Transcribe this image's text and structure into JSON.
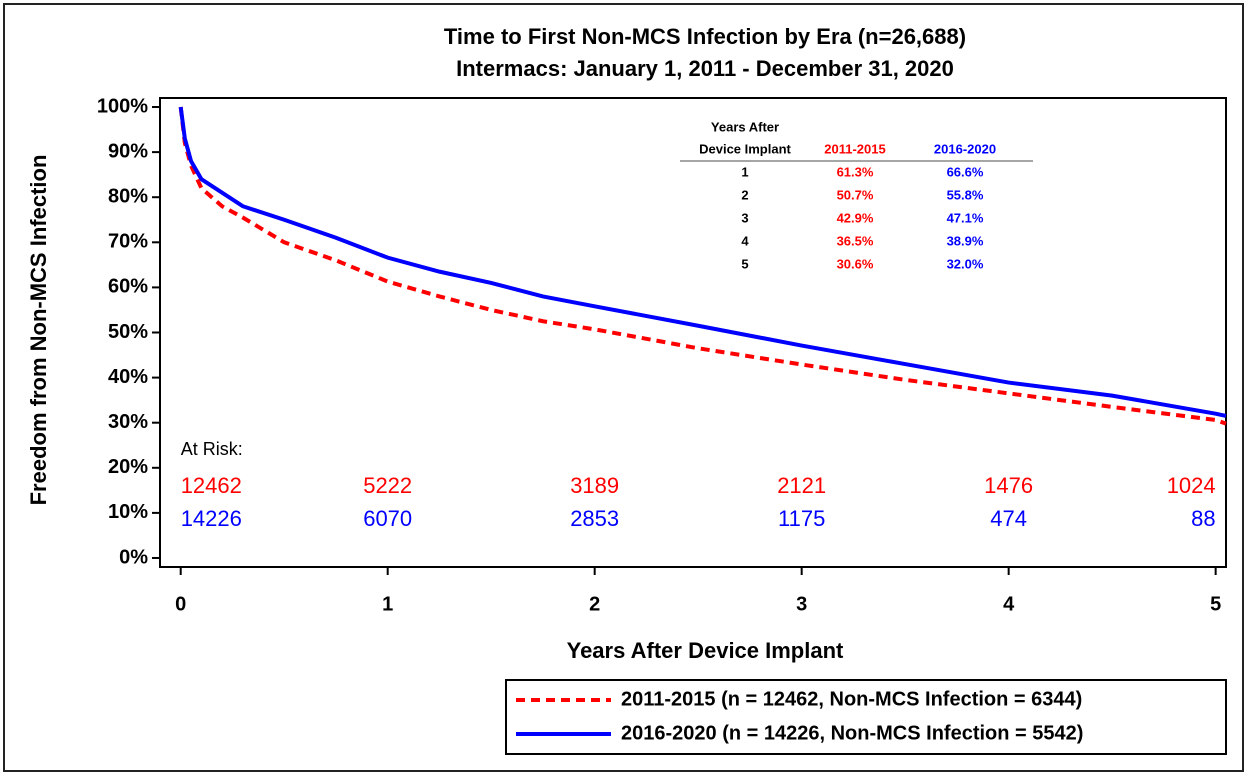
{
  "chart_data": {
    "type": "line",
    "title": "Time to First Non-MCS Infection by Era (n=26,688)",
    "subtitle": "Intermacs: January 1, 2011 - December 31, 2020",
    "x_label": "Years After Device Implant",
    "y_label": "Freedom from Non-MCS Infection",
    "x": [
      0,
      0.02,
      0.05,
      0.1,
      0.2,
      0.3,
      0.5,
      0.75,
      1,
      1.25,
      1.5,
      1.75,
      2,
      2.5,
      3,
      3.5,
      4,
      4.5,
      5,
      5.05
    ],
    "series": [
      {
        "name": "2011-2015 (n = 12462, Non-MCS Infection = 6344)",
        "color": "#ff0000",
        "dash": true,
        "values": [
          100,
          92,
          87,
          82,
          78,
          75.5,
          70,
          66,
          61.3,
          58,
          55,
          52.5,
          50.7,
          46.5,
          42.9,
          39.5,
          36.5,
          33.5,
          30.6,
          29.8
        ]
      },
      {
        "name": "2016-2020 (n = 14226, Non-MCS Infection = 5542)",
        "color": "#0000ff",
        "dash": false,
        "values": [
          100,
          93,
          88,
          84,
          81,
          78,
          75,
          71,
          66.6,
          63.5,
          61,
          58,
          55.8,
          51.5,
          47.1,
          43,
          38.9,
          36,
          32.0,
          31.5
        ]
      }
    ],
    "xlim": [
      -0.1,
      5.05
    ],
    "ylim": [
      -2,
      102
    ],
    "xticks": [
      0,
      1,
      2,
      3,
      4,
      5
    ],
    "yticks": [
      {
        "value": 0,
        "label": "0%"
      },
      {
        "value": 10,
        "label": "10%"
      },
      {
        "value": 20,
        "label": "20%"
      },
      {
        "value": 30,
        "label": "30%"
      },
      {
        "value": 40,
        "label": "40%"
      },
      {
        "value": 50,
        "label": "50%"
      },
      {
        "value": 60,
        "label": "60%"
      },
      {
        "value": 70,
        "label": "70%"
      },
      {
        "value": 80,
        "label": "80%"
      },
      {
        "value": 90,
        "label": "90%"
      },
      {
        "value": 100,
        "label": "100%"
      }
    ],
    "legend": "bottom-right",
    "at_risk": {
      "label": "At Risk:",
      "rows": [
        [
          12462,
          5222,
          3189,
          2121,
          1476,
          1024
        ],
        [
          14226,
          6070,
          2853,
          1175,
          474,
          88
        ]
      ]
    },
    "inset_table": {
      "header_lines": [
        "Years After",
        "Device Implant"
      ],
      "columns": [
        "2011-2015",
        "2016-2020"
      ],
      "rows": [
        [
          "1",
          "61.3%",
          "66.6%"
        ],
        [
          "2",
          "50.7%",
          "55.8%"
        ],
        [
          "3",
          "42.9%",
          "47.1%"
        ],
        [
          "4",
          "36.5%",
          "38.9%"
        ],
        [
          "5",
          "30.6%",
          "32.0%"
        ]
      ]
    }
  }
}
